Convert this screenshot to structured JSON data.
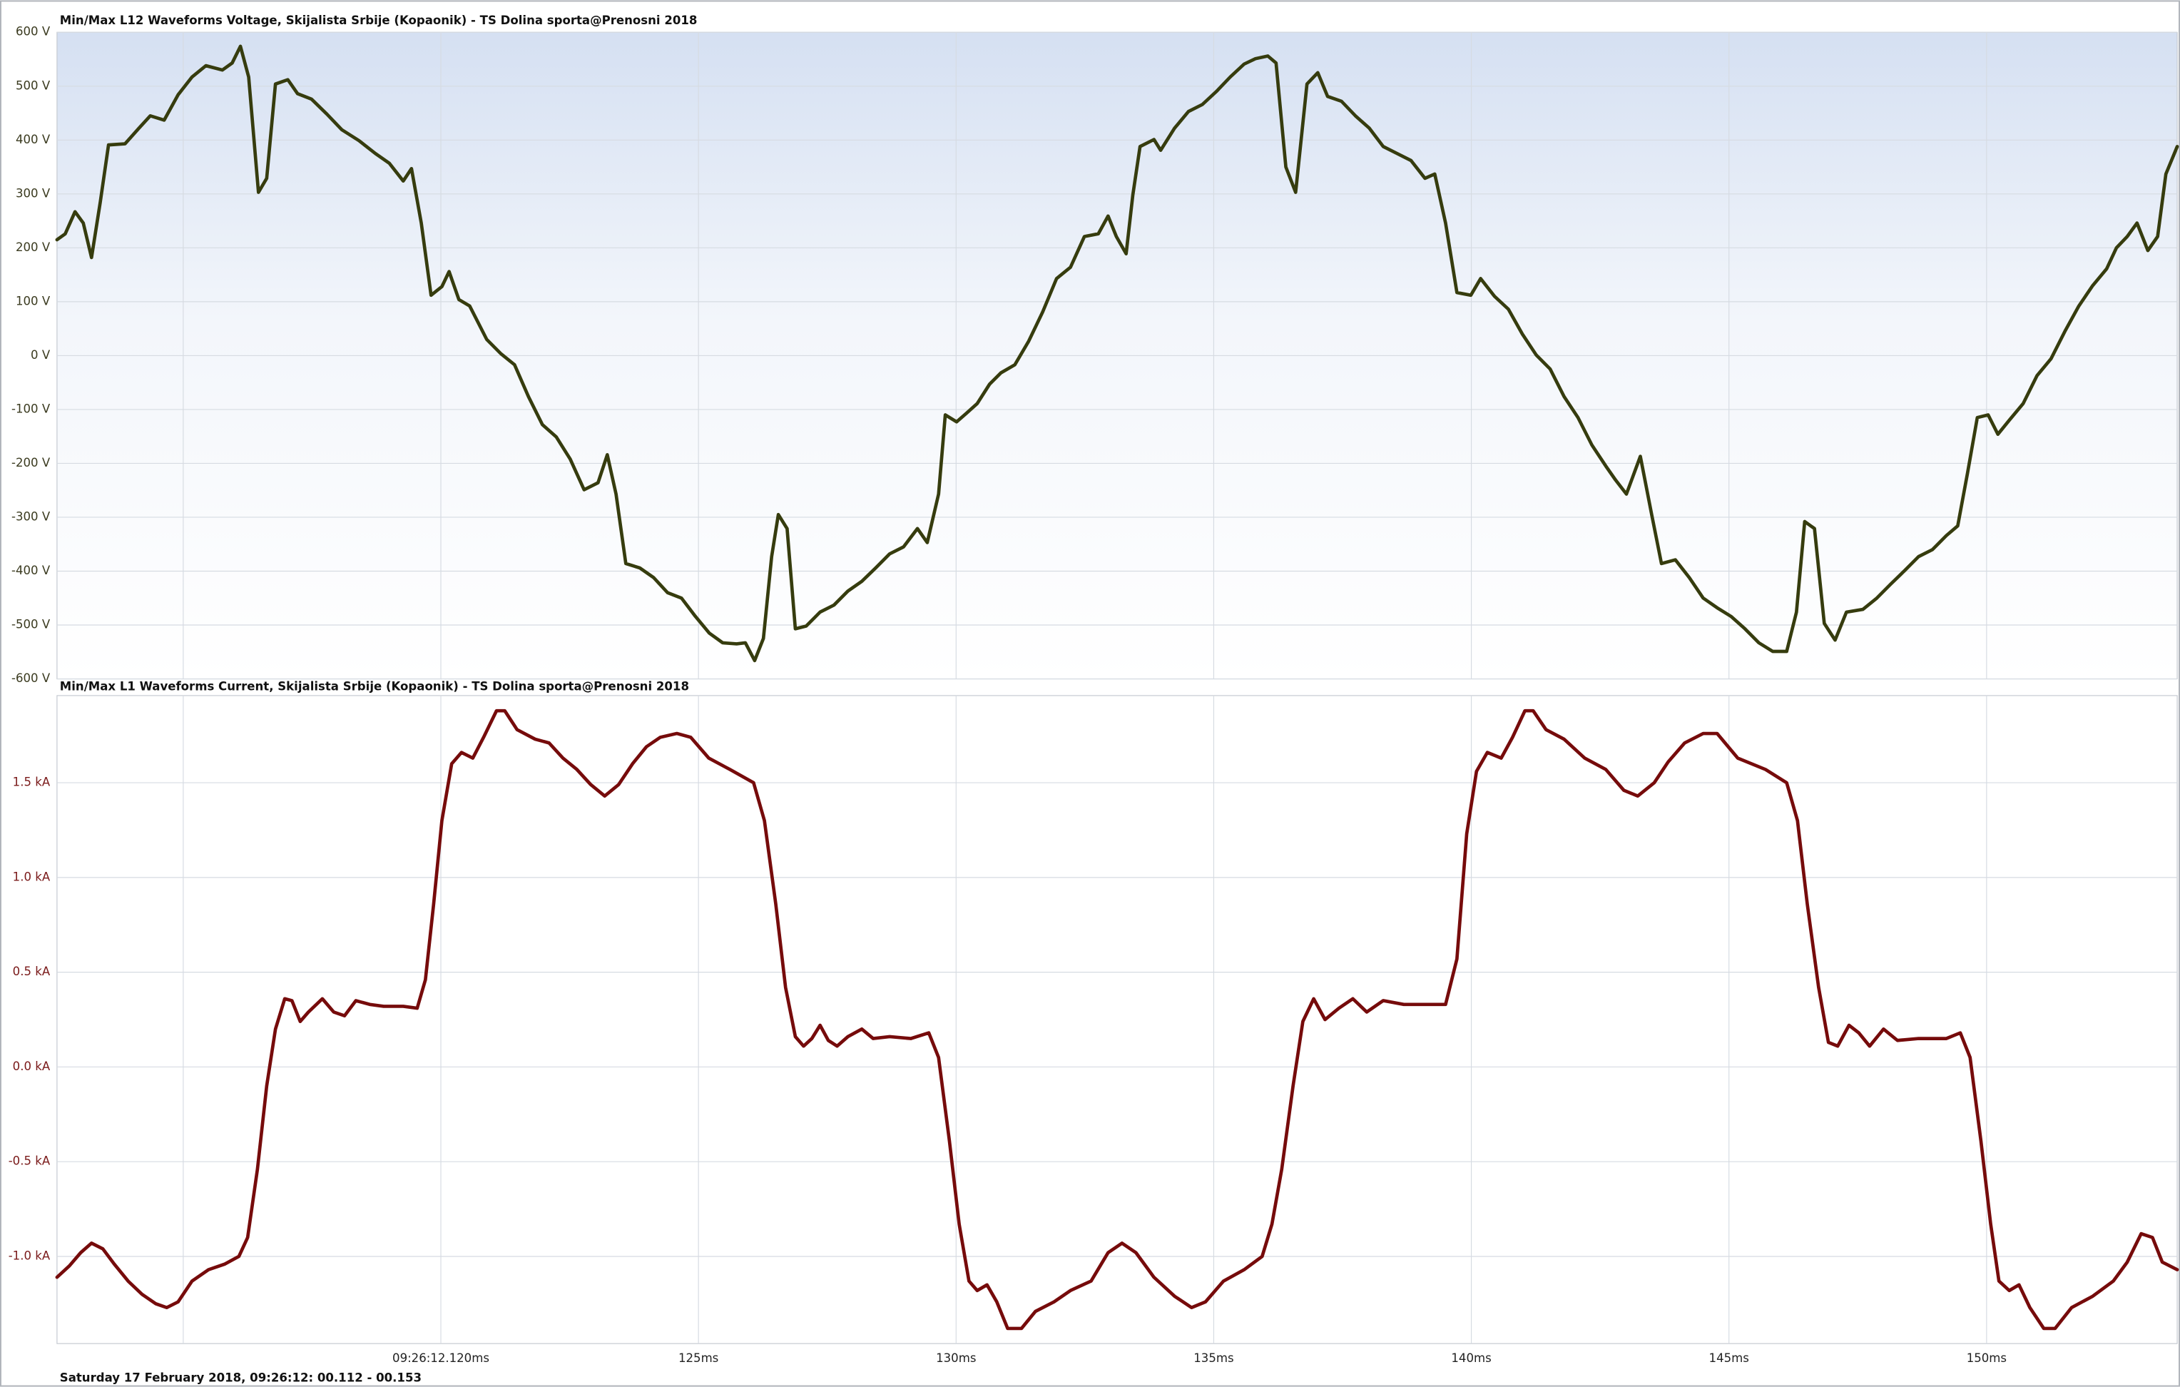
{
  "chart_data": [
    {
      "type": "line",
      "title": "Min/Max L12 Waveforms Voltage, Skijalista Srbije (Kopaonik) - TS Dolina sporta@Prenosni 2018",
      "color": "#363c0e",
      "xlim": [
        112.55,
        153.7
      ],
      "ylim": [
        -600,
        600
      ],
      "yticks": [
        {
          "value": -600,
          "label": "-600 V"
        },
        {
          "value": -500,
          "label": "-500 V"
        },
        {
          "value": -400,
          "label": "-400 V"
        },
        {
          "value": -300,
          "label": "-300 V"
        },
        {
          "value": -200,
          "label": "-200 V"
        },
        {
          "value": -100,
          "label": "-100 V"
        },
        {
          "value": 0,
          "label": "0 V"
        },
        {
          "value": 100,
          "label": "100 V"
        },
        {
          "value": 200,
          "label": "200 V"
        },
        {
          "value": 300,
          "label": "300 V"
        },
        {
          "value": 400,
          "label": "400 V"
        },
        {
          "value": 500,
          "label": "500 V"
        },
        {
          "value": 600,
          "label": "600 V"
        }
      ],
      "grid": true,
      "x": [
        112.55,
        112.71,
        112.9,
        113.06,
        113.22,
        113.39,
        113.55,
        113.87,
        114.14,
        114.36,
        114.63,
        114.9,
        115.17,
        115.44,
        115.76,
        115.95,
        116.11,
        116.27,
        116.46,
        116.62,
        116.79,
        117.03,
        117.22,
        117.49,
        117.79,
        118.08,
        118.41,
        118.73,
        119.0,
        119.27,
        119.43,
        119.62,
        119.81,
        120.02,
        120.16,
        120.35,
        120.56,
        120.89,
        121.16,
        121.43,
        121.7,
        121.97,
        122.24,
        122.51,
        122.78,
        123.05,
        123.23,
        123.4,
        123.59,
        123.86,
        124.13,
        124.4,
        124.67,
        124.94,
        125.21,
        125.47,
        125.74,
        125.91,
        126.09,
        126.26,
        126.42,
        126.55,
        126.72,
        126.88,
        127.09,
        127.36,
        127.63,
        127.9,
        128.17,
        128.44,
        128.71,
        128.98,
        129.25,
        129.44,
        129.66,
        129.79,
        130.01,
        130.2,
        130.41,
        130.65,
        130.87,
        131.14,
        131.41,
        131.68,
        131.95,
        132.22,
        132.49,
        132.76,
        132.95,
        133.11,
        133.3,
        133.43,
        133.57,
        133.84,
        133.97,
        134.24,
        134.51,
        134.78,
        135.05,
        135.32,
        135.59,
        135.81,
        136.05,
        136.21,
        136.4,
        136.59,
        136.81,
        137.02,
        137.21,
        137.48,
        137.75,
        138.02,
        138.29,
        138.56,
        138.83,
        139.1,
        139.29,
        139.5,
        139.72,
        139.99,
        140.18,
        140.45,
        140.72,
        140.99,
        141.26,
        141.53,
        141.8,
        142.07,
        142.34,
        142.61,
        142.8,
        143.01,
        143.28,
        143.5,
        143.69,
        143.96,
        144.23,
        144.5,
        144.77,
        145.04,
        145.31,
        145.58,
        145.85,
        146.12,
        146.31,
        146.47,
        146.66,
        146.85,
        147.06,
        147.28,
        147.6,
        147.87,
        148.14,
        148.41,
        148.68,
        148.95,
        149.22,
        149.44,
        149.63,
        149.82,
        150.03,
        150.22,
        150.44,
        150.71,
        150.98,
        151.25,
        151.52,
        151.79,
        152.06,
        152.33,
        152.52,
        152.73,
        152.92,
        153.13,
        153.32,
        153.48,
        153.7
      ],
      "values": [
        215,
        226,
        267,
        246,
        182,
        285,
        391,
        393,
        422,
        445,
        437,
        484,
        517,
        538,
        530,
        543,
        574,
        517,
        303,
        329,
        504,
        512,
        486,
        476,
        448,
        419,
        399,
        375,
        357,
        324,
        347,
        246,
        112,
        128,
        156,
        104,
        92,
        30,
        4,
        -17,
        -76,
        -128,
        -151,
        -192,
        -249,
        -236,
        -184,
        -257,
        -386,
        -394,
        -412,
        -440,
        -450,
        -484,
        -515,
        -533,
        -535,
        -533,
        -566,
        -525,
        -373,
        -295,
        -321,
        -507,
        -502,
        -476,
        -463,
        -437,
        -419,
        -394,
        -368,
        -355,
        -321,
        -347,
        -257,
        -110,
        -123,
        -107,
        -89,
        -53,
        -32,
        -17,
        27,
        81,
        143,
        164,
        221,
        226,
        259,
        221,
        189,
        298,
        388,
        401,
        381,
        422,
        453,
        466,
        490,
        517,
        541,
        551,
        556,
        543,
        350,
        303,
        504,
        525,
        481,
        472,
        445,
        422,
        388,
        375,
        362,
        329,
        337,
        246,
        117,
        112,
        143,
        110,
        86,
        40,
        1,
        -25,
        -76,
        -115,
        -166,
        -205,
        -231,
        -257,
        -187,
        -295,
        -386,
        -379,
        -412,
        -450,
        -468,
        -484,
        -507,
        -533,
        -549,
        -549,
        -476,
        -308,
        -321,
        -497,
        -528,
        -476,
        -471,
        -450,
        -424,
        -399,
        -373,
        -360,
        -334,
        -316,
        -218,
        -115,
        -110,
        -146,
        -120,
        -89,
        -37,
        -6,
        45,
        92,
        130,
        161,
        200,
        221,
        246,
        195,
        221,
        337,
        388
      ]
    },
    {
      "type": "line",
      "title": "Min/Max L1 Waveforms Current, Skijalista Srbije (Kopaonik) - TS Dolina sporta@Prenosni 2018",
      "color": "#760b0b",
      "xlim": [
        112.55,
        153.7
      ],
      "xticks": [
        {
          "value": 115,
          "label": null
        },
        {
          "value": 120,
          "label": "09:26:12.120ms"
        },
        {
          "value": 125,
          "label": "125ms"
        },
        {
          "value": 130,
          "label": "130ms"
        },
        {
          "value": 135,
          "label": "135ms"
        },
        {
          "value": 140,
          "label": "140ms"
        },
        {
          "value": 145,
          "label": "145ms"
        },
        {
          "value": 150,
          "label": "150ms"
        }
      ],
      "ylim": [
        -1.46,
        1.96
      ],
      "yticks": [
        {
          "value": -1.0,
          "label": "-1.0 kA"
        },
        {
          "value": -0.5,
          "label": "-0.5 kA"
        },
        {
          "value": 0.0,
          "label": "0.0 kA"
        },
        {
          "value": 0.5,
          "label": "0.5 kA"
        },
        {
          "value": 1.0,
          "label": "1.0 kA"
        },
        {
          "value": 1.5,
          "label": "1.5 kA"
        }
      ],
      "grid": true,
      "x": [
        112.55,
        112.79,
        113.01,
        113.22,
        113.44,
        113.66,
        113.93,
        114.2,
        114.47,
        114.68,
        114.9,
        115.17,
        115.49,
        115.81,
        116.08,
        116.25,
        116.44,
        116.62,
        116.79,
        116.97,
        117.11,
        117.27,
        117.43,
        117.7,
        117.92,
        118.13,
        118.35,
        118.62,
        118.89,
        119.27,
        119.54,
        119.7,
        119.86,
        120.02,
        120.21,
        120.4,
        120.62,
        120.83,
        121.08,
        121.24,
        121.48,
        121.83,
        122.1,
        122.37,
        122.64,
        122.91,
        123.18,
        123.45,
        123.72,
        123.99,
        124.26,
        124.58,
        124.85,
        125.2,
        125.61,
        126.07,
        126.28,
        126.5,
        126.69,
        126.88,
        127.04,
        127.2,
        127.36,
        127.52,
        127.69,
        127.9,
        128.17,
        128.39,
        128.71,
        129.12,
        129.47,
        129.66,
        129.87,
        130.06,
        130.25,
        130.41,
        130.6,
        130.79,
        131.0,
        131.27,
        131.54,
        131.9,
        132.22,
        132.62,
        132.95,
        133.22,
        133.49,
        133.84,
        134.24,
        134.57,
        134.84,
        135.19,
        135.59,
        135.94,
        136.13,
        136.32,
        136.54,
        136.73,
        136.94,
        137.16,
        137.43,
        137.7,
        137.97,
        138.29,
        138.69,
        139.23,
        139.5,
        139.72,
        139.91,
        140.1,
        140.31,
        140.58,
        140.8,
        141.04,
        141.2,
        141.45,
        141.8,
        142.2,
        142.61,
        142.96,
        143.23,
        143.55,
        143.82,
        144.14,
        144.5,
        144.77,
        145.17,
        145.71,
        146.12,
        146.33,
        146.52,
        146.74,
        146.93,
        147.11,
        147.33,
        147.52,
        147.73,
        148.0,
        148.27,
        148.68,
        149.22,
        149.49,
        149.68,
        149.89,
        150.08,
        150.24,
        150.44,
        150.63,
        150.84,
        151.11,
        151.33,
        151.65,
        152.06,
        152.46,
        152.73,
        153.0,
        153.22,
        153.41,
        153.7
      ],
      "values": [
        -1.11,
        -1.05,
        -0.98,
        -0.93,
        -0.96,
        -1.04,
        -1.13,
        -1.2,
        -1.25,
        -1.27,
        -1.24,
        -1.13,
        -1.07,
        -1.04,
        -1.0,
        -0.9,
        -0.54,
        -0.1,
        0.2,
        0.36,
        0.35,
        0.24,
        0.29,
        0.36,
        0.29,
        0.27,
        0.35,
        0.33,
        0.32,
        0.32,
        0.31,
        0.46,
        0.86,
        1.3,
        1.6,
        1.66,
        1.63,
        1.74,
        1.88,
        1.88,
        1.78,
        1.73,
        1.71,
        1.63,
        1.57,
        1.49,
        1.43,
        1.49,
        1.6,
        1.69,
        1.74,
        1.76,
        1.74,
        1.63,
        1.57,
        1.5,
        1.3,
        0.86,
        0.42,
        0.16,
        0.11,
        0.15,
        0.22,
        0.14,
        0.11,
        0.16,
        0.2,
        0.15,
        0.16,
        0.15,
        0.18,
        0.05,
        -0.39,
        -0.83,
        -1.13,
        -1.18,
        -1.15,
        -1.24,
        -1.38,
        -1.38,
        -1.29,
        -1.24,
        -1.18,
        -1.13,
        -0.98,
        -0.93,
        -0.98,
        -1.11,
        -1.21,
        -1.27,
        -1.24,
        -1.13,
        -1.07,
        -1.0,
        -0.83,
        -0.54,
        -0.1,
        0.24,
        0.36,
        0.25,
        0.31,
        0.36,
        0.29,
        0.35,
        0.33,
        0.33,
        0.33,
        0.57,
        1.23,
        1.56,
        1.66,
        1.63,
        1.74,
        1.88,
        1.88,
        1.78,
        1.73,
        1.63,
        1.57,
        1.46,
        1.43,
        1.5,
        1.61,
        1.71,
        1.76,
        1.76,
        1.63,
        1.57,
        1.5,
        1.3,
        0.86,
        0.42,
        0.13,
        0.11,
        0.22,
        0.18,
        0.11,
        0.2,
        0.14,
        0.15,
        0.15,
        0.18,
        0.05,
        -0.39,
        -0.83,
        -1.13,
        -1.18,
        -1.15,
        -1.27,
        -1.38,
        -1.38,
        -1.27,
        -1.21,
        -1.13,
        -1.03,
        -0.88,
        -0.9,
        -1.03,
        -1.07
      ]
    }
  ],
  "footer": "Saturday 17 February 2018, 09:26:12: 00.112 - 00.153"
}
